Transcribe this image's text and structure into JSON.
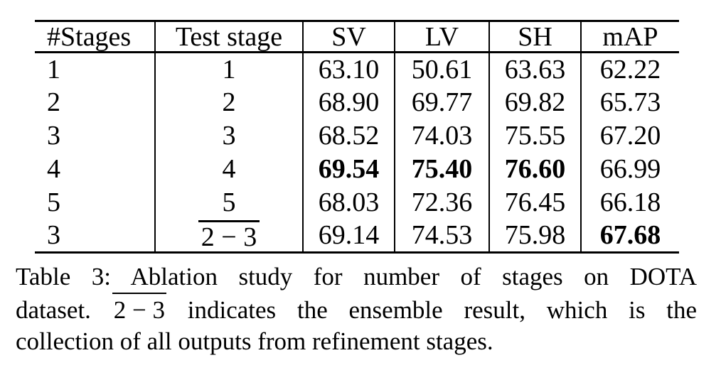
{
  "table": {
    "headers": [
      "#Stages",
      "Test stage",
      "SV",
      "LV",
      "SH",
      "mAP"
    ],
    "rows": [
      {
        "cells": [
          {
            "v": "1"
          },
          {
            "v": "1"
          },
          {
            "v": "63.10"
          },
          {
            "v": "50.61"
          },
          {
            "v": "63.63"
          },
          {
            "v": "62.22"
          }
        ]
      },
      {
        "cells": [
          {
            "v": "2"
          },
          {
            "v": "2"
          },
          {
            "v": "68.90"
          },
          {
            "v": "69.77"
          },
          {
            "v": "69.82"
          },
          {
            "v": "65.73"
          }
        ]
      },
      {
        "cells": [
          {
            "v": "3"
          },
          {
            "v": "3"
          },
          {
            "v": "68.52"
          },
          {
            "v": "74.03"
          },
          {
            "v": "75.55"
          },
          {
            "v": "67.20"
          }
        ]
      },
      {
        "cells": [
          {
            "v": "4"
          },
          {
            "v": "4"
          },
          {
            "v": "69.54",
            "bold": true
          },
          {
            "v": "75.40",
            "bold": true
          },
          {
            "v": "76.60",
            "bold": true
          },
          {
            "v": "66.99"
          }
        ]
      },
      {
        "cells": [
          {
            "v": "5"
          },
          {
            "v": "5"
          },
          {
            "v": "68.03"
          },
          {
            "v": "72.36"
          },
          {
            "v": "76.45"
          },
          {
            "v": "66.18"
          }
        ]
      },
      {
        "cells": [
          {
            "v": "3"
          },
          {
            "v": "2 − 3",
            "overline": true
          },
          {
            "v": "69.14"
          },
          {
            "v": "74.53"
          },
          {
            "v": "75.98"
          },
          {
            "v": "67.68",
            "bold": true
          }
        ]
      }
    ]
  },
  "caption": {
    "line1": "Table 3: Ablation study for number of stages on DOTA",
    "line2_prefix": "dataset.",
    "line2_overlined": "2 − 3",
    "line2_suffix": "indicates the ensemble result, which is the",
    "line3": "collection of all outputs from refinement stages."
  }
}
